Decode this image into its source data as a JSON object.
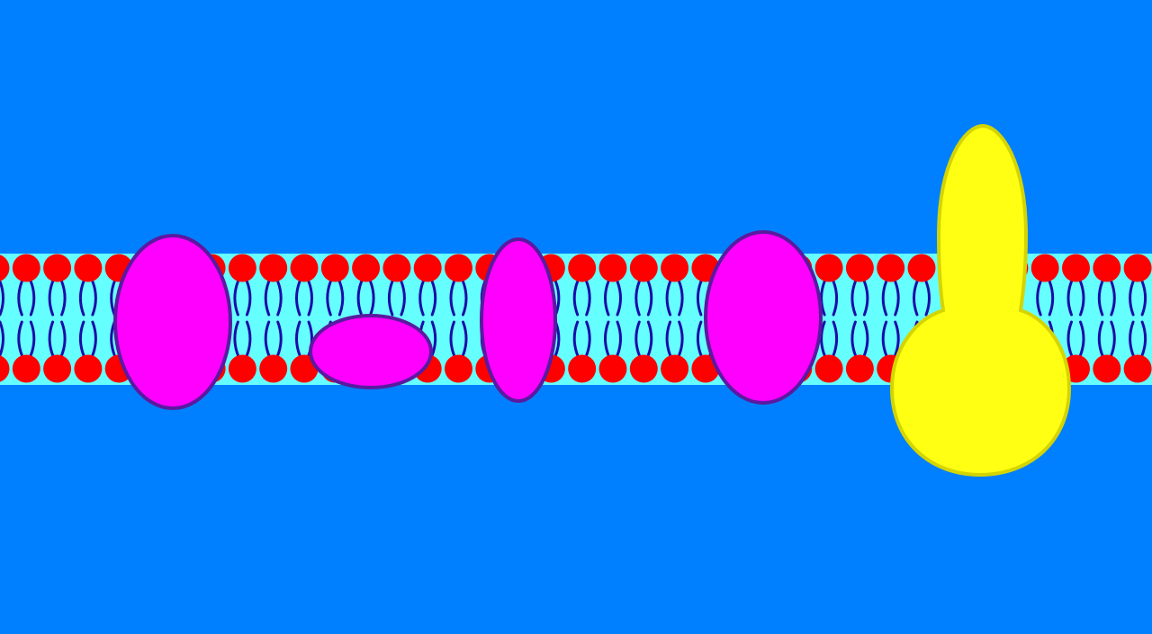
{
  "scene": {
    "subject": "membrane-cross-section",
    "colors": {
      "background": "#0080FF",
      "membrane_core": "#66FFFF",
      "lipid_head": "#FF0000",
      "lipid_tail": "#1A0DA8",
      "protein_fill": "#FF00FF",
      "protein_outline": "#5A1AA0",
      "glycoprotein_fill": "#FFFF14",
      "glycoprotein_outline": "#D4D400"
    },
    "lipid_head_count_per_leaflet": 38,
    "proteins": [
      {
        "kind": "integral-protein"
      },
      {
        "kind": "peripheral-protein"
      },
      {
        "kind": "integral-protein"
      },
      {
        "kind": "integral-protein"
      },
      {
        "kind": "glycoprotein"
      }
    ]
  }
}
